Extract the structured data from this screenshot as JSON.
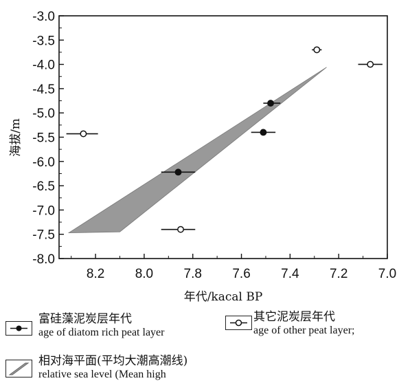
{
  "chart_data": {
    "type": "scatter",
    "xlabel": "年代/kacal BP",
    "ylabel": "海拔/m",
    "xlim": [
      8.35,
      7.0
    ],
    "ylim": [
      -8.0,
      -3.0
    ],
    "x_reversed": true,
    "xticks": [
      "8.2",
      "8.0",
      "7.8",
      "7.6",
      "7.4",
      "7.2",
      "7.0"
    ],
    "xtick_values": [
      8.2,
      8.0,
      7.8,
      7.6,
      7.4,
      7.2,
      7.0
    ],
    "yticks": [
      "-3.0",
      "-3.5",
      "-4.0",
      "-4.5",
      "-5.0",
      "-5.5",
      "-6.0",
      "-6.5",
      "-7.0",
      "-7.5",
      "-8.0"
    ],
    "ytick_values": [
      -3.0,
      -3.5,
      -4.0,
      -4.5,
      -5.0,
      -5.5,
      -6.0,
      -6.5,
      -7.0,
      -7.5,
      -8.0
    ],
    "series": [
      {
        "name": "富硅藻泥炭层年代 age of diatom rich peat layer",
        "marker": "filled-circle",
        "points": [
          {
            "x": 7.48,
            "y": -4.8,
            "xerr_low": 7.44,
            "xerr_high": 7.51
          },
          {
            "x": 7.51,
            "y": -5.4,
            "xerr_low": 7.46,
            "xerr_high": 7.56
          },
          {
            "x": 7.86,
            "y": -6.22,
            "xerr_low": 7.79,
            "xerr_high": 7.93
          }
        ]
      },
      {
        "name": "其它泥炭层年代 age of other peat layer;",
        "marker": "open-circle",
        "points": [
          {
            "x": 7.29,
            "y": -3.7,
            "xerr_low": 7.27,
            "xerr_high": 7.31
          },
          {
            "x": 7.07,
            "y": -4.0,
            "xerr_low": 7.02,
            "xerr_high": 7.12
          },
          {
            "x": 8.25,
            "y": -5.43,
            "xerr_low": 8.19,
            "xerr_high": 8.32
          },
          {
            "x": 7.85,
            "y": -7.4,
            "xerr_low": 7.79,
            "xerr_high": 7.93
          }
        ]
      }
    ],
    "band": {
      "name": "相对海平面(平均大潮高潮线) relative sea level (Mean high",
      "polygon": [
        [
          8.31,
          -7.47
        ],
        [
          8.1,
          -7.45
        ],
        [
          7.25,
          -4.06
        ]
      ],
      "color": "#999999"
    }
  },
  "legend": {
    "diatom_zh": "富硅藻泥炭层年代",
    "diatom_en": "age of diatom rich peat layer",
    "other_zh": "其它泥炭层年代",
    "other_en": "age of other peat layer;",
    "sea_zh": "相对海平面(平均大潮高潮线)",
    "sea_en": "relative sea level (Mean high"
  }
}
